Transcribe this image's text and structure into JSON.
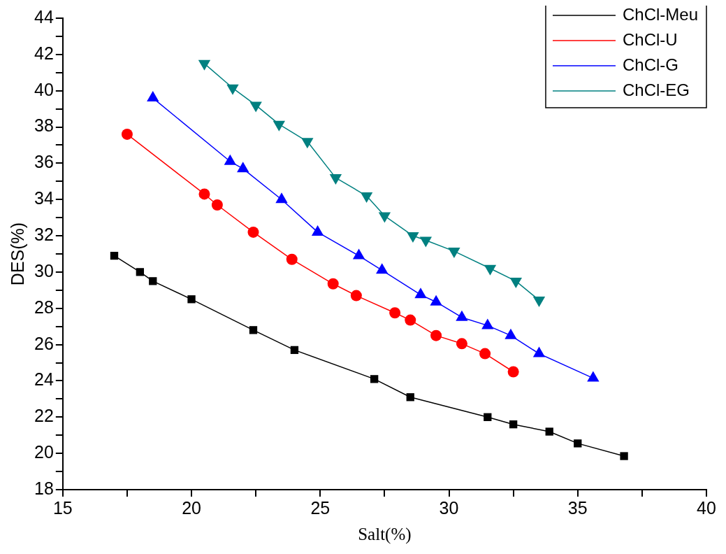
{
  "chart_data": {
    "type": "line",
    "xlabel": "Salt(%)",
    "ylabel": "DES(%)",
    "xlim": [
      15,
      40
    ],
    "ylim": [
      18,
      44
    ],
    "xticks": [
      15,
      {
        "value": 17.5,
        "label": null
      },
      20,
      {
        "value": 22.5,
        "label": null
      },
      25,
      {
        "value": 27.5,
        "label": null
      },
      30,
      {
        "value": 32.5,
        "label": null
      },
      35,
      {
        "value": 37.5,
        "label": null
      },
      40
    ],
    "yticks": [
      18,
      {
        "value": 19,
        "label": null
      },
      20,
      {
        "value": 21,
        "label": null
      },
      22,
      {
        "value": 23,
        "label": null
      },
      24,
      {
        "value": 25,
        "label": null
      },
      26,
      {
        "value": 27,
        "label": null
      },
      28,
      {
        "value": 29,
        "label": null
      },
      30,
      {
        "value": 31,
        "label": null
      },
      32,
      {
        "value": 33,
        "label": null
      },
      34,
      {
        "value": 35,
        "label": null
      },
      36,
      {
        "value": 37,
        "label": null
      },
      38,
      {
        "value": 39,
        "label": null
      },
      40,
      {
        "value": 41,
        "label": null
      },
      42,
      {
        "value": 43,
        "label": null
      },
      44
    ],
    "grid": false,
    "legend": "top right",
    "line_style": "solid",
    "series": [
      {
        "name": "ChCl-Meu",
        "color": "#000000",
        "marker": "square",
        "x": [
          17.0,
          18.0,
          18.5,
          20.0,
          22.4,
          24.0,
          27.1,
          28.5,
          31.5,
          32.5,
          33.9,
          35.0,
          36.8
        ],
        "values": [
          30.9,
          30.0,
          29.5,
          28.5,
          26.8,
          25.7,
          24.1,
          23.1,
          22.0,
          21.6,
          21.2,
          20.55,
          19.85
        ]
      },
      {
        "name": "ChCl-U",
        "color": "#ff0000",
        "marker": "circle",
        "x": [
          17.5,
          20.5,
          21.0,
          22.4,
          23.9,
          25.5,
          26.4,
          27.9,
          28.5,
          29.5,
          30.5,
          31.4,
          32.5
        ],
        "values": [
          37.6,
          34.3,
          33.7,
          32.2,
          30.7,
          29.35,
          28.7,
          27.75,
          27.35,
          26.5,
          26.05,
          25.5,
          24.5
        ]
      },
      {
        "name": "ChCl-G",
        "color": "#0000ff",
        "marker": "triangle",
        "x": [
          18.5,
          21.5,
          22.0,
          23.5,
          24.9,
          26.5,
          27.4,
          28.9,
          29.5,
          30.5,
          31.5,
          32.4,
          33.5,
          35.6
        ],
        "values": [
          39.6,
          36.1,
          35.7,
          34.0,
          32.2,
          30.9,
          30.1,
          28.75,
          28.35,
          27.5,
          27.05,
          26.5,
          25.5,
          24.15
        ]
      },
      {
        "name": "ChCl-EG",
        "color": "#008080",
        "marker": "triangle-down",
        "x": [
          20.5,
          21.6,
          22.5,
          23.4,
          24.5,
          25.6,
          26.8,
          27.5,
          28.6,
          29.1,
          30.2,
          31.6,
          32.6,
          33.5
        ],
        "values": [
          41.5,
          40.15,
          39.2,
          38.15,
          37.2,
          35.2,
          34.2,
          33.1,
          32.0,
          31.75,
          31.15,
          30.2,
          29.5,
          28.45
        ]
      }
    ]
  }
}
